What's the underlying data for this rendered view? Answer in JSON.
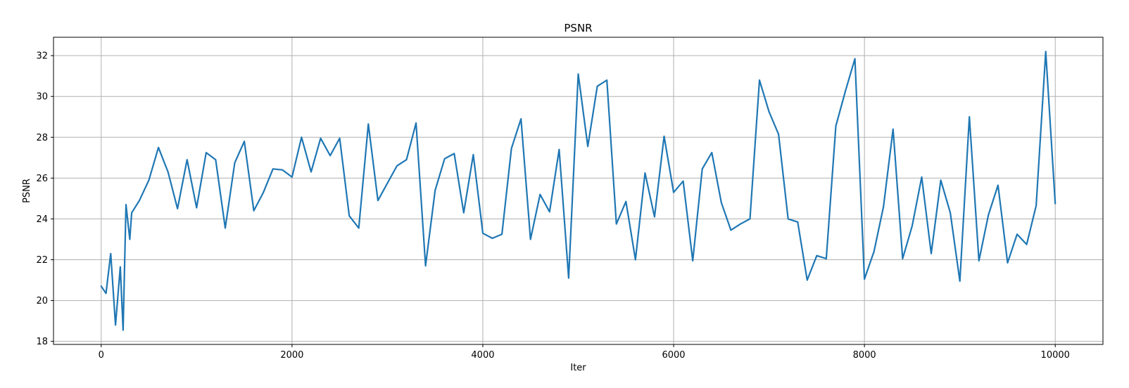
{
  "chart_data": {
    "type": "line",
    "title": "PSNR",
    "xlabel": "Iter",
    "ylabel": "PSNR",
    "xlim": [
      -500,
      10500
    ],
    "ylim": [
      17.85,
      32.9
    ],
    "xticks": [
      0,
      2000,
      4000,
      6000,
      8000,
      10000
    ],
    "yticks": [
      18,
      20,
      22,
      24,
      26,
      28,
      30,
      32
    ],
    "grid": true,
    "color": "#1f77b4",
    "series": [
      {
        "x": [
          0,
          50,
          100,
          150,
          200,
          230,
          260,
          300,
          320,
          400,
          500,
          600,
          700,
          800,
          900,
          1000,
          1100,
          1200,
          1300,
          1400,
          1500,
          1600,
          1700,
          1800,
          1900,
          2000,
          2100,
          2200,
          2300,
          2400,
          2500,
          2600,
          2700,
          2800,
          2900,
          3000,
          3100,
          3200,
          3300,
          3400,
          3500,
          3600,
          3700,
          3800,
          3900,
          4000,
          4100,
          4200,
          4300,
          4400,
          4500,
          4600,
          4700,
          4800,
          4900,
          5000,
          5100,
          5200,
          5300,
          5400,
          5500,
          5600,
          5700,
          5800,
          5900,
          6000,
          6100,
          6200,
          6300,
          6400,
          6500,
          6600,
          6700,
          6800,
          6900,
          7000,
          7100,
          7200,
          7300,
          7400,
          7500,
          7600,
          7700,
          7800,
          7900,
          8000,
          8100,
          8200,
          8300,
          8400,
          8500,
          8600,
          8700,
          8800,
          8900,
          9000,
          9100,
          9200,
          9300,
          9400,
          9500,
          9600,
          9700,
          9800,
          9900,
          10000
        ],
        "values": [
          20.7,
          20.35,
          22.3,
          18.8,
          21.65,
          18.55,
          24.7,
          23.0,
          24.3,
          24.9,
          25.9,
          27.5,
          26.3,
          24.5,
          26.9,
          24.55,
          27.25,
          26.9,
          23.55,
          26.75,
          27.8,
          24.4,
          25.3,
          26.45,
          26.4,
          26.05,
          28.0,
          26.3,
          27.95,
          27.1,
          27.95,
          24.15,
          23.55,
          28.65,
          24.9,
          25.75,
          26.6,
          26.9,
          28.7,
          21.7,
          25.4,
          26.95,
          27.2,
          24.3,
          27.15,
          23.3,
          23.05,
          23.25,
          27.45,
          28.9,
          23.0,
          25.2,
          24.35,
          27.4,
          21.1,
          31.1,
          27.55,
          30.5,
          30.8,
          23.75,
          24.85,
          22.0,
          26.25,
          24.1,
          28.05,
          25.3,
          25.85,
          21.95,
          26.45,
          27.25,
          24.8,
          23.45,
          23.75,
          24.0,
          30.8,
          29.25,
          28.15,
          24.0,
          23.85,
          21.0,
          22.2,
          22.05,
          28.55,
          30.25,
          31.85,
          21.05,
          22.4,
          24.6,
          28.4,
          22.05,
          23.65,
          26.05,
          22.3,
          25.9,
          24.3,
          20.95,
          29.0,
          21.95,
          24.2,
          25.65,
          21.85,
          23.25,
          22.75,
          24.65,
          32.2,
          24.75
        ]
      }
    ]
  }
}
